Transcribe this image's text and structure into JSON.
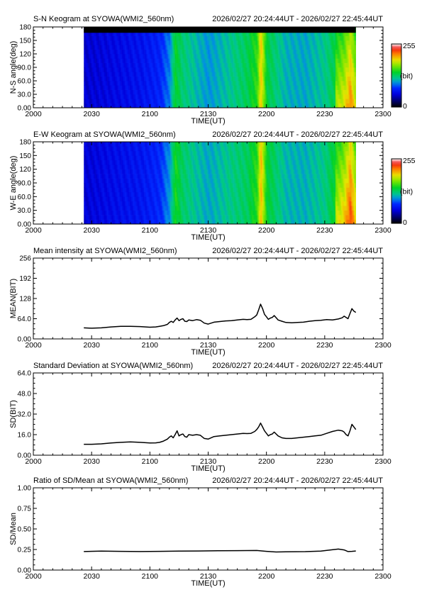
{
  "time_window": "2026/02/27 20:24:44UT - 2026/02/27 22:45:44UT",
  "colorbar": {
    "max_label": "255",
    "unit_label": "(bit)",
    "min_label": "0"
  },
  "chart_data": [
    {
      "id": "sn",
      "type": "heatmap",
      "title": "S-N Keogram at SYOWA(WMI2_560nm)",
      "xlabel": "TIME(UT)",
      "ylabel": "N-S angle(deg)",
      "xlim": [
        "20:00",
        "23:00"
      ],
      "xticks": [
        "2000",
        "2030",
        "2100",
        "2130",
        "2200",
        "2230",
        "2300"
      ],
      "ylim": [
        0,
        180
      ],
      "yticks": [
        "0.00",
        "30.0",
        "60.0",
        "90.0",
        "120",
        "150",
        "180"
      ],
      "data_range": [
        "20:26",
        "22:46"
      ],
      "clim": [
        0,
        255
      ],
      "colormap": "rainbow",
      "no_data_top_band_deg": [
        167,
        180
      ],
      "intensity_profile": [
        {
          "t": "20:26",
          "v": 48
        },
        {
          "t": "20:40",
          "v": 55
        },
        {
          "t": "20:55",
          "v": 62
        },
        {
          "t": "21:05",
          "v": 72
        },
        {
          "t": "21:10",
          "v": 95
        },
        {
          "t": "21:13",
          "v": 140
        },
        {
          "t": "21:16",
          "v": 125
        },
        {
          "t": "21:20",
          "v": 118
        },
        {
          "t": "21:30",
          "v": 100
        },
        {
          "t": "21:40",
          "v": 115
        },
        {
          "t": "21:50",
          "v": 130
        },
        {
          "t": "21:55",
          "v": 150
        },
        {
          "t": "21:57",
          "v": 195
        },
        {
          "t": "22:00",
          "v": 135
        },
        {
          "t": "22:10",
          "v": 108
        },
        {
          "t": "22:20",
          "v": 105
        },
        {
          "t": "22:30",
          "v": 118
        },
        {
          "t": "22:40",
          "v": 150
        },
        {
          "t": "22:43",
          "v": 175
        },
        {
          "t": "22:46",
          "v": 140
        }
      ]
    },
    {
      "id": "ew",
      "type": "heatmap",
      "title": "E-W Keogram at SYOWA(WMI2_560nm)",
      "xlabel": "TIME(UT)",
      "ylabel": "W-E angle(deg)",
      "xlim": [
        "20:00",
        "23:00"
      ],
      "xticks": [
        "2000",
        "2030",
        "2100",
        "2130",
        "2200",
        "2230",
        "2300"
      ],
      "ylim": [
        0,
        180
      ],
      "yticks": [
        "0.00",
        "30.0",
        "60.0",
        "90.0",
        "120",
        "150",
        "180"
      ],
      "data_range": [
        "20:26",
        "22:46"
      ],
      "clim": [
        0,
        255
      ],
      "colormap": "rainbow",
      "intensity_profile": [
        {
          "t": "20:26",
          "v": 50
        },
        {
          "t": "20:40",
          "v": 58
        },
        {
          "t": "20:55",
          "v": 64
        },
        {
          "t": "21:05",
          "v": 74
        },
        {
          "t": "21:10",
          "v": 100
        },
        {
          "t": "21:13",
          "v": 145
        },
        {
          "t": "21:16",
          "v": 128
        },
        {
          "t": "21:20",
          "v": 120
        },
        {
          "t": "21:30",
          "v": 105
        },
        {
          "t": "21:40",
          "v": 118
        },
        {
          "t": "21:50",
          "v": 128
        },
        {
          "t": "21:55",
          "v": 150
        },
        {
          "t": "21:57",
          "v": 200
        },
        {
          "t": "22:00",
          "v": 138
        },
        {
          "t": "22:10",
          "v": 110
        },
        {
          "t": "22:20",
          "v": 108
        },
        {
          "t": "22:30",
          "v": 120
        },
        {
          "t": "22:40",
          "v": 160
        },
        {
          "t": "22:43",
          "v": 190
        },
        {
          "t": "22:46",
          "v": 150
        }
      ]
    },
    {
      "id": "mean",
      "type": "line",
      "title": "Mean intensity at SYOWA(WMI2_560nm)",
      "xlabel": "TIME(UT)",
      "ylabel": "MEAN(BIT)",
      "xlim": [
        "20:00",
        "23:00"
      ],
      "xticks": [
        "2000",
        "2030",
        "2100",
        "2130",
        "2200",
        "2230",
        "2300"
      ],
      "ylim": [
        0,
        256
      ],
      "yticks": [
        "0.00",
        "64.0",
        "128",
        "192",
        "256"
      ],
      "series": [
        {
          "x": [
            "20:26",
            "20:30",
            "20:35",
            "20:40",
            "20:45",
            "20:50",
            "20:55",
            "21:00",
            "21:03",
            "21:05",
            "21:07",
            "21:09",
            "21:10",
            "21:11",
            "21:12",
            "21:13",
            "21:14",
            "21:15",
            "21:16",
            "21:17",
            "21:18",
            "21:19",
            "21:20",
            "21:22",
            "21:24",
            "21:26",
            "21:28",
            "21:30",
            "21:33",
            "21:36",
            "21:39",
            "21:42",
            "21:45",
            "21:48",
            "21:50",
            "21:52",
            "21:54",
            "21:55",
            "21:56",
            "21:57",
            "21:58",
            "21:59",
            "22:00",
            "22:01",
            "22:02",
            "22:03",
            "22:04",
            "22:06",
            "22:08",
            "22:10",
            "22:13",
            "22:16",
            "22:19",
            "22:22",
            "22:25",
            "22:28",
            "22:31",
            "22:34",
            "22:37",
            "22:39",
            "22:40",
            "22:41",
            "22:42",
            "22:43",
            "22:44",
            "22:45",
            "22:46"
          ],
          "y": [
            35,
            34,
            35,
            38,
            40,
            40,
            39,
            37,
            38,
            40,
            42,
            46,
            52,
            56,
            52,
            60,
            66,
            58,
            62,
            64,
            56,
            55,
            60,
            58,
            61,
            59,
            50,
            47,
            53,
            55,
            57,
            58,
            60,
            62,
            61,
            62,
            70,
            76,
            92,
            110,
            96,
            78,
            70,
            62,
            66,
            68,
            74,
            60,
            56,
            52,
            51,
            52,
            53,
            56,
            58,
            59,
            61,
            60,
            63,
            67,
            72,
            68,
            64,
            80,
            96,
            88,
            84
          ]
        }
      ]
    },
    {
      "id": "sd",
      "type": "line",
      "title": "Standard Deviation at SYOWA(WMI2_560nm)",
      "xlabel": "TIME(UT)",
      "ylabel": "SD(BIT)",
      "xlim": [
        "20:00",
        "23:00"
      ],
      "xticks": [
        "2000",
        "2030",
        "2100",
        "2130",
        "2200",
        "2230",
        "2300"
      ],
      "ylim": [
        0,
        64
      ],
      "yticks": [
        "0.00",
        "16.0",
        "32.0",
        "48.0",
        "64.0"
      ],
      "series": [
        {
          "x": [
            "20:26",
            "20:30",
            "20:35",
            "20:40",
            "20:45",
            "20:50",
            "20:55",
            "21:00",
            "21:03",
            "21:05",
            "21:07",
            "21:09",
            "21:10",
            "21:11",
            "21:12",
            "21:13",
            "21:14",
            "21:15",
            "21:16",
            "21:17",
            "21:18",
            "21:19",
            "21:20",
            "21:22",
            "21:24",
            "21:26",
            "21:28",
            "21:30",
            "21:33",
            "21:36",
            "21:39",
            "21:42",
            "21:45",
            "21:48",
            "21:50",
            "21:52",
            "21:54",
            "21:55",
            "21:56",
            "21:57",
            "21:58",
            "21:59",
            "22:00",
            "22:01",
            "22:02",
            "22:03",
            "22:04",
            "22:06",
            "22:08",
            "22:10",
            "22:13",
            "22:16",
            "22:19",
            "22:22",
            "22:25",
            "22:28",
            "22:31",
            "22:34",
            "22:37",
            "22:39",
            "22:40",
            "22:41",
            "22:42",
            "22:43",
            "22:44",
            "22:45",
            "22:46"
          ],
          "y": [
            8.5,
            8.5,
            8.8,
            9.5,
            10,
            10.3,
            10,
            9.5,
            9.6,
            10,
            11,
            12.5,
            14,
            15,
            13.5,
            16,
            19,
            15,
            16,
            16.5,
            14.5,
            14,
            16,
            15.5,
            16,
            15.5,
            13,
            12.5,
            14.5,
            15,
            15.5,
            16,
            16.5,
            17,
            16.8,
            17,
            18.5,
            20,
            22,
            25,
            22,
            19,
            17,
            15,
            16,
            16.5,
            18,
            15,
            13.5,
            13,
            13,
            13.5,
            14,
            14.5,
            15,
            15.5,
            17,
            18.5,
            19.5,
            19,
            18,
            16,
            15,
            19,
            24,
            22,
            20
          ]
        }
      ]
    },
    {
      "id": "ratio",
      "type": "line",
      "title": "Ratio of SD/Mean at SYOWA(WMI2_560nm)",
      "xlabel": "TIME(UT)",
      "ylabel": "SD/Mean",
      "xlim": [
        "20:00",
        "23:00"
      ],
      "xticks": [
        "2000",
        "2030",
        "2100",
        "2130",
        "2200",
        "2230",
        "2300"
      ],
      "ylim": [
        0,
        1
      ],
      "yticks": [
        "0.00",
        "0.25",
        "0.50",
        "0.75",
        "1.00"
      ],
      "series": [
        {
          "x": [
            "20:26",
            "20:35",
            "20:45",
            "20:55",
            "21:05",
            "21:15",
            "21:25",
            "21:35",
            "21:45",
            "21:55",
            "22:00",
            "22:05",
            "22:10",
            "22:20",
            "22:28",
            "22:33",
            "22:37",
            "22:40",
            "22:42",
            "22:44",
            "22:46"
          ],
          "y": [
            0.225,
            0.23,
            0.228,
            0.225,
            0.228,
            0.23,
            0.232,
            0.235,
            0.236,
            0.238,
            0.228,
            0.22,
            0.222,
            0.224,
            0.23,
            0.245,
            0.255,
            0.245,
            0.225,
            0.228,
            0.232
          ]
        }
      ]
    }
  ]
}
